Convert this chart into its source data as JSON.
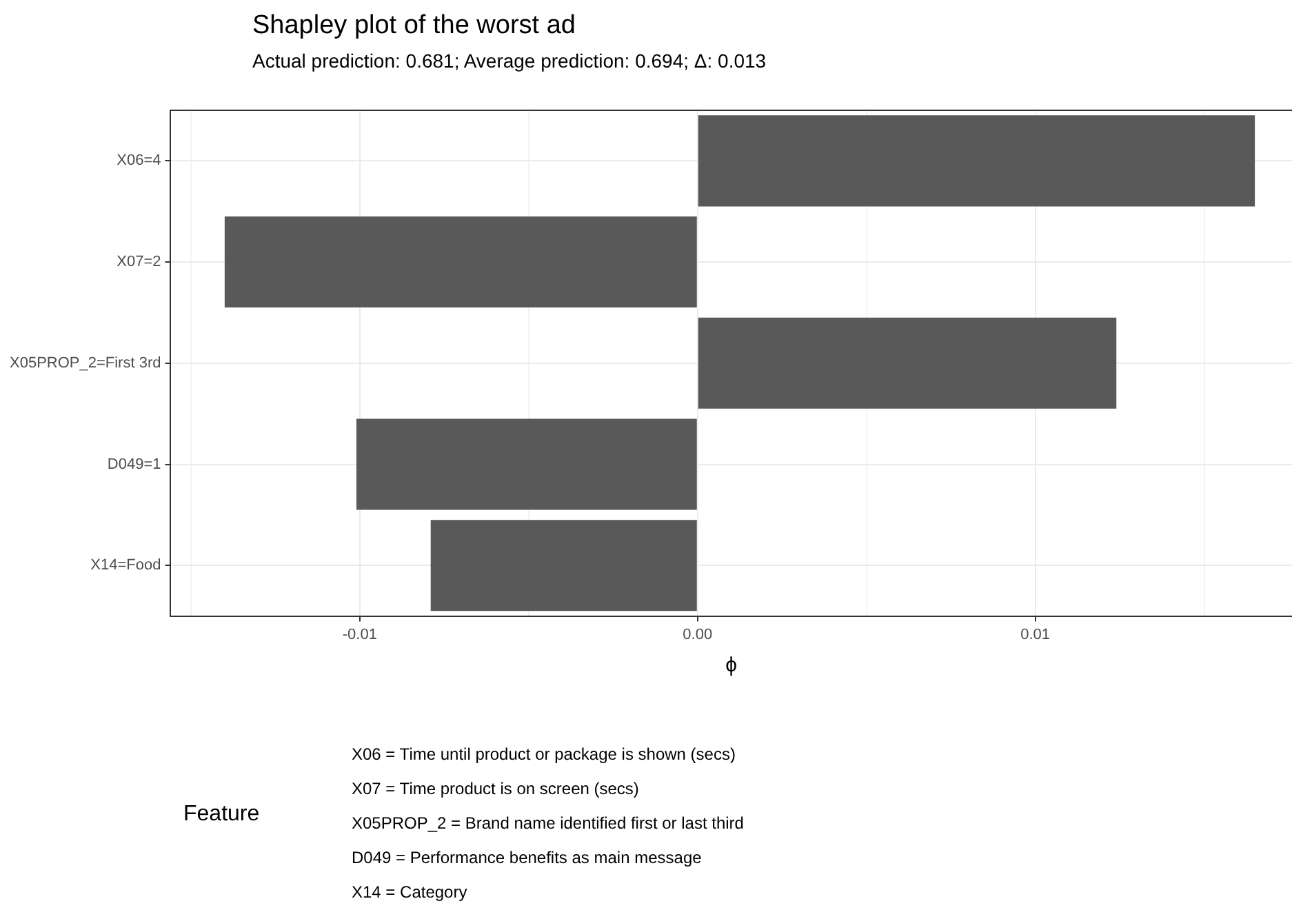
{
  "chart_data": {
    "type": "bar",
    "orientation": "horizontal",
    "title": "Shapley plot of the worst ad",
    "subtitle": "Actual prediction: 0.681; Average prediction: 0.694; Δ: 0.013",
    "xlabel": "ϕ",
    "legend_title": "Feature",
    "categories": [
      "X06=4",
      "X07=2",
      "X05PROP_2=First 3rd",
      "D049=1",
      "X14=Food"
    ],
    "values": [
      0.0165,
      -0.014,
      0.0124,
      -0.0101,
      -0.0079
    ],
    "color": "#595959",
    "xlim": [
      -0.0156,
      0.0176
    ],
    "xticks": [
      {
        "value": -0.015,
        "label": null
      },
      {
        "value": -0.01,
        "label": "-0.01"
      },
      {
        "value": -0.005,
        "label": null
      },
      {
        "value": 0,
        "label": "0.00"
      },
      {
        "value": 0.005,
        "label": null
      },
      {
        "value": 0.01,
        "label": "0.01"
      },
      {
        "value": 0.015,
        "label": null
      }
    ],
    "grid": true,
    "annotations": [
      "X06 = Time until product or package is shown (secs)",
      "X07 = Time product is on screen (secs)",
      "X05PROP_2 = Brand name identified first or last third",
      "D049 = Performance benefits as main message",
      "X14 = Category"
    ]
  }
}
